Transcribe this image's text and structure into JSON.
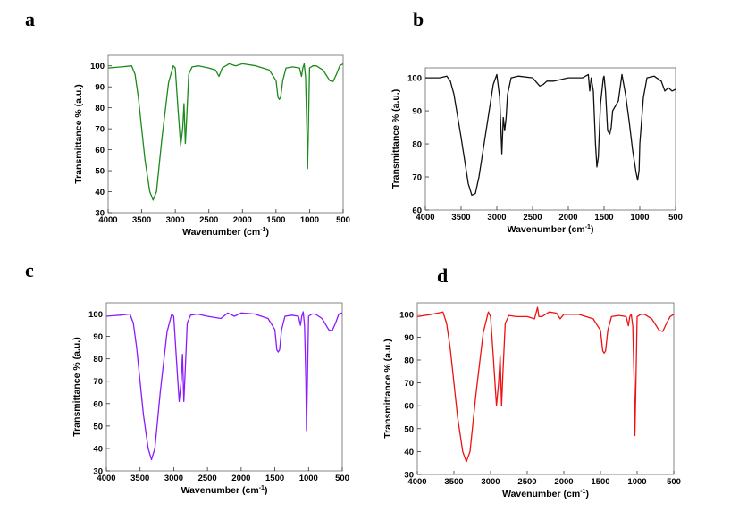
{
  "chart_data": [
    {
      "panel": "a",
      "type": "line",
      "color": "#1a8a1a",
      "xlabel": "Wavenumber (cm",
      "xlabel_sup": "-1",
      "xlabel_end": ")",
      "ylabel": "Transmittance % (a.u.)",
      "xlim": [
        4000,
        500
      ],
      "ylim": [
        30,
        105
      ],
      "xticks": [
        4000,
        3500,
        3000,
        2500,
        2000,
        1500,
        1000,
        500
      ],
      "yticks": [
        30,
        40,
        50,
        60,
        70,
        80,
        90,
        100
      ],
      "x": [
        4000,
        3800,
        3650,
        3600,
        3550,
        3450,
        3380,
        3330,
        3280,
        3200,
        3100,
        3030,
        3000,
        2960,
        2920,
        2890,
        2870,
        2850,
        2830,
        2800,
        2750,
        2650,
        2500,
        2400,
        2350,
        2300,
        2200,
        2100,
        2000,
        1800,
        1600,
        1500,
        1470,
        1450,
        1430,
        1400,
        1350,
        1250,
        1150,
        1120,
        1100,
        1080,
        1060,
        1040,
        1030,
        1020,
        1000,
        950,
        900,
        800,
        700,
        650,
        600,
        550,
        500
      ],
      "y": [
        99,
        99.5,
        100,
        96,
        85,
        55,
        40,
        36,
        40,
        65,
        92,
        100,
        99,
        80,
        62,
        70,
        82,
        63,
        75,
        96,
        99.5,
        100,
        99,
        98,
        95,
        99,
        101,
        100,
        101,
        100,
        98,
        93,
        85,
        84,
        85,
        93,
        99,
        99.5,
        99,
        95,
        99,
        101,
        95,
        70,
        51,
        65,
        99,
        100,
        100,
        98,
        93,
        92.5,
        96,
        100,
        101
      ]
    },
    {
      "panel": "b",
      "type": "line",
      "color": "#111111",
      "xlabel": "Wavenumber (cm",
      "xlabel_sup": "-1",
      "xlabel_end": ")",
      "ylabel": "Transmittance % (a.u.)",
      "xlim": [
        4000,
        500
      ],
      "ylim": [
        60,
        103
      ],
      "xticks": [
        4000,
        3500,
        3000,
        2500,
        2000,
        1500,
        1000,
        500
      ],
      "yticks": [
        60,
        70,
        80,
        90,
        100
      ],
      "x": [
        4000,
        3800,
        3700,
        3650,
        3600,
        3500,
        3450,
        3400,
        3350,
        3300,
        3250,
        3150,
        3050,
        3000,
        2960,
        2930,
        2910,
        2890,
        2870,
        2850,
        2800,
        2700,
        2500,
        2400,
        2350,
        2300,
        2200,
        2000,
        1800,
        1720,
        1700,
        1680,
        1650,
        1620,
        1600,
        1580,
        1550,
        1510,
        1500,
        1480,
        1450,
        1420,
        1400,
        1380,
        1300,
        1250,
        1200,
        1150,
        1100,
        1050,
        1030,
        1010,
        1000,
        950,
        900,
        800,
        700,
        650,
        600,
        550,
        500
      ],
      "y": [
        100,
        100,
        100.5,
        99,
        95,
        82,
        75,
        68,
        64.5,
        65,
        70,
        84,
        98,
        101,
        94,
        77,
        88,
        84,
        88,
        95,
        100,
        100.5,
        100,
        97.5,
        98,
        99,
        99,
        100,
        100,
        101,
        96,
        100,
        96,
        80,
        73,
        76,
        92,
        100,
        100.5,
        96,
        84,
        83,
        85,
        90,
        93,
        101,
        95,
        87,
        78,
        71,
        69,
        72,
        80,
        94,
        100,
        100.5,
        99,
        96,
        97,
        96,
        96.5
      ]
    },
    {
      "panel": "c",
      "type": "line",
      "color": "#8a1aff",
      "xlabel": "Wavenumber (cm",
      "xlabel_sup": "-1",
      "xlabel_end": ")",
      "ylabel": "Transmittance % (a.u.)",
      "xlim": [
        4000,
        500
      ],
      "ylim": [
        30,
        105
      ],
      "xticks": [
        4000,
        3500,
        3000,
        2500,
        2000,
        1500,
        1000,
        500
      ],
      "yticks": [
        30,
        40,
        50,
        60,
        70,
        80,
        90,
        100
      ],
      "x": [
        4000,
        3800,
        3650,
        3600,
        3550,
        3450,
        3380,
        3330,
        3280,
        3200,
        3100,
        3030,
        3000,
        2960,
        2920,
        2890,
        2870,
        2850,
        2830,
        2800,
        2750,
        2650,
        2500,
        2300,
        2200,
        2100,
        2000,
        1800,
        1600,
        1500,
        1470,
        1450,
        1430,
        1400,
        1350,
        1250,
        1150,
        1120,
        1100,
        1080,
        1060,
        1040,
        1030,
        1020,
        1000,
        950,
        900,
        800,
        700,
        650,
        600,
        550,
        500
      ],
      "y": [
        99,
        99.5,
        100,
        96,
        85,
        55,
        40,
        35,
        40,
        65,
        92,
        100,
        99,
        80,
        61,
        70,
        82,
        61,
        75,
        96,
        99.5,
        100,
        99,
        98,
        100.5,
        99,
        100.5,
        100,
        98,
        93,
        84,
        83,
        84,
        93,
        99,
        99.5,
        99,
        95,
        99,
        101,
        95,
        70,
        48,
        65,
        99,
        100,
        100,
        98,
        93,
        92.5,
        96,
        100,
        100.5
      ]
    },
    {
      "panel": "d",
      "type": "line",
      "color": "#ee1111",
      "xlabel": "Wavenumber (cm",
      "xlabel_sup": "-1",
      "xlabel_end": ")",
      "ylabel": "Transmittance % (a.u.)",
      "xlim": [
        4000,
        500
      ],
      "ylim": [
        30,
        105
      ],
      "xticks": [
        4000,
        3500,
        3000,
        2500,
        2000,
        1500,
        1000,
        500
      ],
      "yticks": [
        30,
        40,
        50,
        60,
        70,
        80,
        90,
        100
      ],
      "x": [
        4000,
        3800,
        3650,
        3600,
        3550,
        3450,
        3380,
        3330,
        3280,
        3200,
        3100,
        3030,
        3000,
        2960,
        2920,
        2890,
        2870,
        2850,
        2830,
        2800,
        2750,
        2650,
        2500,
        2400,
        2360,
        2340,
        2300,
        2200,
        2100,
        2050,
        2000,
        1800,
        1600,
        1500,
        1470,
        1450,
        1430,
        1400,
        1350,
        1250,
        1150,
        1120,
        1100,
        1080,
        1060,
        1040,
        1030,
        1020,
        1000,
        950,
        900,
        800,
        700,
        650,
        600,
        550,
        500
      ],
      "y": [
        99,
        100,
        101,
        96,
        85,
        55,
        40,
        35.5,
        40,
        65,
        92,
        101,
        99,
        80,
        60,
        70,
        82,
        60,
        75,
        96,
        99.5,
        99,
        99,
        98,
        103,
        99,
        99,
        101,
        100.5,
        98,
        100,
        100,
        98,
        93,
        84,
        83,
        84,
        93,
        99,
        99.5,
        99,
        95,
        99,
        100,
        95,
        70,
        47,
        65,
        99,
        100,
        100,
        98,
        93,
        92.5,
        96,
        99,
        100
      ]
    }
  ]
}
